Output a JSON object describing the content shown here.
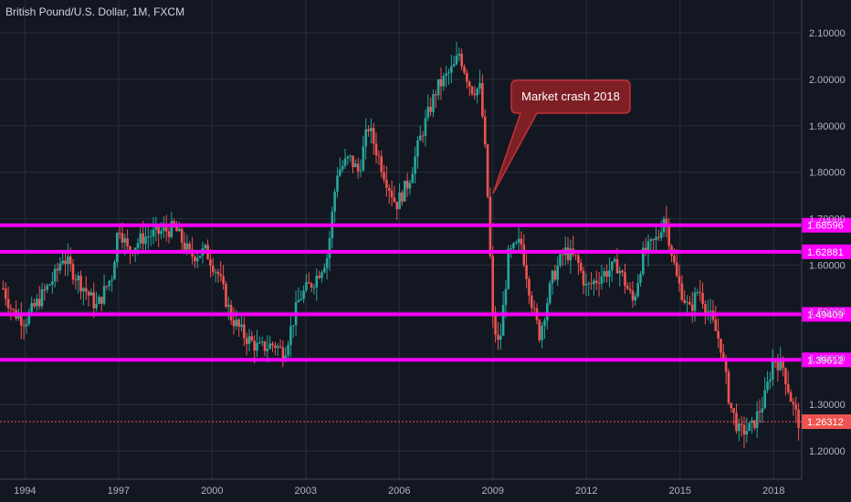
{
  "header": {
    "title": "British Pound/U.S. Dollar, 1M, FXCM"
  },
  "colors": {
    "background": "#131722",
    "grid": "#2a2e39",
    "up": "#26a69a",
    "down": "#ef5350",
    "level": "#ff00ff",
    "annotation_bg": "#7e1f25",
    "annotation_border": "#c2313a",
    "last_price": "#ef5350",
    "axis_text": "#b2b5be"
  },
  "chart_data": {
    "type": "candlestick",
    "title": "British Pound/U.S. Dollar, 1M, FXCM",
    "x_ticks": [
      "1994",
      "1997",
      "2000",
      "2003",
      "2006",
      "2009",
      "2012",
      "2015",
      "2018"
    ],
    "y_ticks": [
      "1.20000",
      "1.30000",
      "1.40000",
      "1.50000",
      "1.60000",
      "1.70000",
      "1.80000",
      "1.90000",
      "2.00000",
      "2.10000"
    ],
    "ylim": [
      1.16,
      2.14
    ],
    "xlim": [
      1993.2,
      2018.9
    ],
    "grid": true,
    "price_path": [
      [
        1993.3,
        1.55
      ],
      [
        1993.6,
        1.5
      ],
      [
        1994.0,
        1.48
      ],
      [
        1994.5,
        1.53
      ],
      [
        1995.0,
        1.58
      ],
      [
        1995.2,
        1.62
      ],
      [
        1995.8,
        1.56
      ],
      [
        1996.3,
        1.51
      ],
      [
        1996.8,
        1.58
      ],
      [
        1997.0,
        1.69
      ],
      [
        1997.3,
        1.63
      ],
      [
        1997.8,
        1.66
      ],
      [
        1998.3,
        1.67
      ],
      [
        1998.8,
        1.68
      ],
      [
        1999.3,
        1.62
      ],
      [
        1999.8,
        1.63
      ],
      [
        2000.2,
        1.58
      ],
      [
        2000.6,
        1.49
      ],
      [
        2001.0,
        1.45
      ],
      [
        2001.5,
        1.42
      ],
      [
        2002.0,
        1.43
      ],
      [
        2002.3,
        1.41
      ],
      [
        2002.8,
        1.53
      ],
      [
        2003.3,
        1.57
      ],
      [
        2003.7,
        1.62
      ],
      [
        2004.0,
        1.8
      ],
      [
        2004.4,
        1.83
      ],
      [
        2004.7,
        1.8
      ],
      [
        2005.0,
        1.9
      ],
      [
        2005.5,
        1.8
      ],
      [
        2005.9,
        1.73
      ],
      [
        2006.3,
        1.78
      ],
      [
        2006.7,
        1.88
      ],
      [
        2007.2,
        1.98
      ],
      [
        2007.8,
        2.03
      ],
      [
        2007.9,
        2.06
      ],
      [
        2008.3,
        1.98
      ],
      [
        2008.6,
        1.98
      ],
      [
        2008.8,
        1.8
      ],
      [
        2009.0,
        1.48
      ],
      [
        2009.2,
        1.42
      ],
      [
        2009.5,
        1.62
      ],
      [
        2009.9,
        1.65
      ],
      [
        2010.3,
        1.5
      ],
      [
        2010.5,
        1.45
      ],
      [
        2010.9,
        1.57
      ],
      [
        2011.3,
        1.63
      ],
      [
        2011.7,
        1.61
      ],
      [
        2012.0,
        1.55
      ],
      [
        2012.5,
        1.58
      ],
      [
        2013.0,
        1.6
      ],
      [
        2013.5,
        1.52
      ],
      [
        2013.8,
        1.62
      ],
      [
        2014.3,
        1.66
      ],
      [
        2014.5,
        1.71
      ],
      [
        2014.9,
        1.57
      ],
      [
        2015.3,
        1.5
      ],
      [
        2015.6,
        1.55
      ],
      [
        2015.9,
        1.5
      ],
      [
        2016.3,
        1.43
      ],
      [
        2016.6,
        1.3
      ],
      [
        2016.9,
        1.24
      ],
      [
        2017.3,
        1.25
      ],
      [
        2017.7,
        1.31
      ],
      [
        2018.0,
        1.4
      ],
      [
        2018.3,
        1.38
      ],
      [
        2018.6,
        1.3
      ],
      [
        2018.8,
        1.263
      ]
    ],
    "levels": [
      {
        "value": 1.68596,
        "label": "1.68596"
      },
      {
        "value": 1.62881,
        "label": "1.62881"
      },
      {
        "value": 1.49409,
        "label": "1.49409"
      },
      {
        "value": 1.39612,
        "label": "1.39612"
      }
    ],
    "last_price": {
      "value": 1.26312,
      "label": "1.26312"
    },
    "annotation": {
      "text": "Market crash 2018"
    }
  }
}
